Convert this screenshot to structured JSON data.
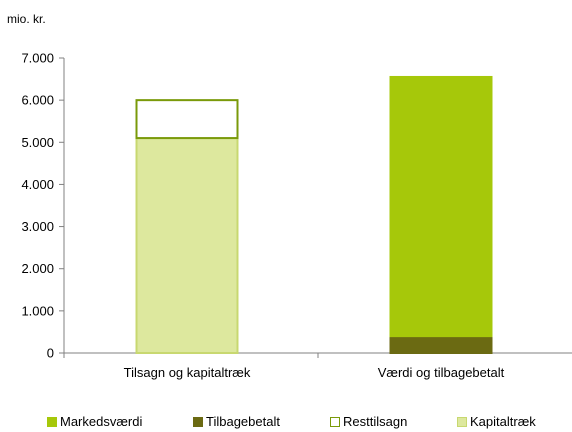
{
  "chart_data": {
    "type": "bar",
    "stacked": true,
    "unit_label": "mio. kr.",
    "categories": [
      "Tilsagn og kapitaltræk",
      "Værdi og tilbagebetalt"
    ],
    "ylim": [
      0,
      7000
    ],
    "yticks": [
      0,
      1000,
      2000,
      3000,
      4000,
      5000,
      6000,
      7000
    ],
    "ytick_labels": [
      "0",
      "1.000",
      "2.000",
      "3.000",
      "4.000",
      "5.000",
      "6.000",
      "7.000"
    ],
    "grid": false,
    "legend_position": "bottom",
    "series": [
      {
        "name": "Markedsværdi",
        "color": "#a6c80a",
        "border": "#a6c80a",
        "values": [
          0,
          6150
        ]
      },
      {
        "name": "Tilbagebetalt",
        "color": "#6b6a12",
        "border": "#6b6a12",
        "values": [
          0,
          400
        ]
      },
      {
        "name": "Resttilsagn",
        "color": "#ffffff",
        "border": "#7a9a0a",
        "values": [
          900,
          0
        ]
      },
      {
        "name": "Kapitaltræk",
        "color": "#dde89e",
        "border": "#c8d870",
        "values": [
          5100,
          0
        ]
      }
    ],
    "stack_order": [
      "Kapitaltræk",
      "Resttilsagn",
      "Tilbagebetalt",
      "Markedsværdi"
    ]
  }
}
